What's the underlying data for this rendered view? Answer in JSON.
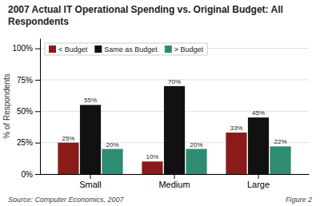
{
  "chart_data": {
    "type": "bar",
    "title": "2007 Actual IT Operational Spending vs. Original Budget: All Respondents",
    "categories": [
      "Small",
      "Medium",
      "Large"
    ],
    "series": [
      {
        "name": "< Budget",
        "color": "#8B1A1A",
        "values": [
          25,
          10,
          33
        ],
        "value_labels": [
          "25%",
          "10%",
          "33%"
        ]
      },
      {
        "name": "Same as Budget",
        "color": "#111111",
        "values": [
          55,
          70,
          45
        ],
        "value_labels": [
          "55%",
          "70%",
          "45%"
        ]
      },
      {
        "name": "> Budget",
        "color": "#2E8B74",
        "values": [
          20,
          20,
          22
        ],
        "value_labels": [
          "20%",
          "20%",
          "22%"
        ]
      }
    ],
    "ylabel": "% of Respondents",
    "ylim": [
      0,
      108
    ],
    "yticks": [
      {
        "value": 0,
        "label": "0%"
      },
      {
        "value": 25,
        "label": "25%"
      },
      {
        "value": 50,
        "label": "50%"
      },
      {
        "value": 75,
        "label": "75%"
      },
      {
        "value": 100,
        "label": "100%"
      }
    ],
    "grid": true,
    "legend": "upper left",
    "data_labels": true,
    "annotations": [
      "Source: Computer Economics, 2007",
      "Figure 2"
    ]
  }
}
